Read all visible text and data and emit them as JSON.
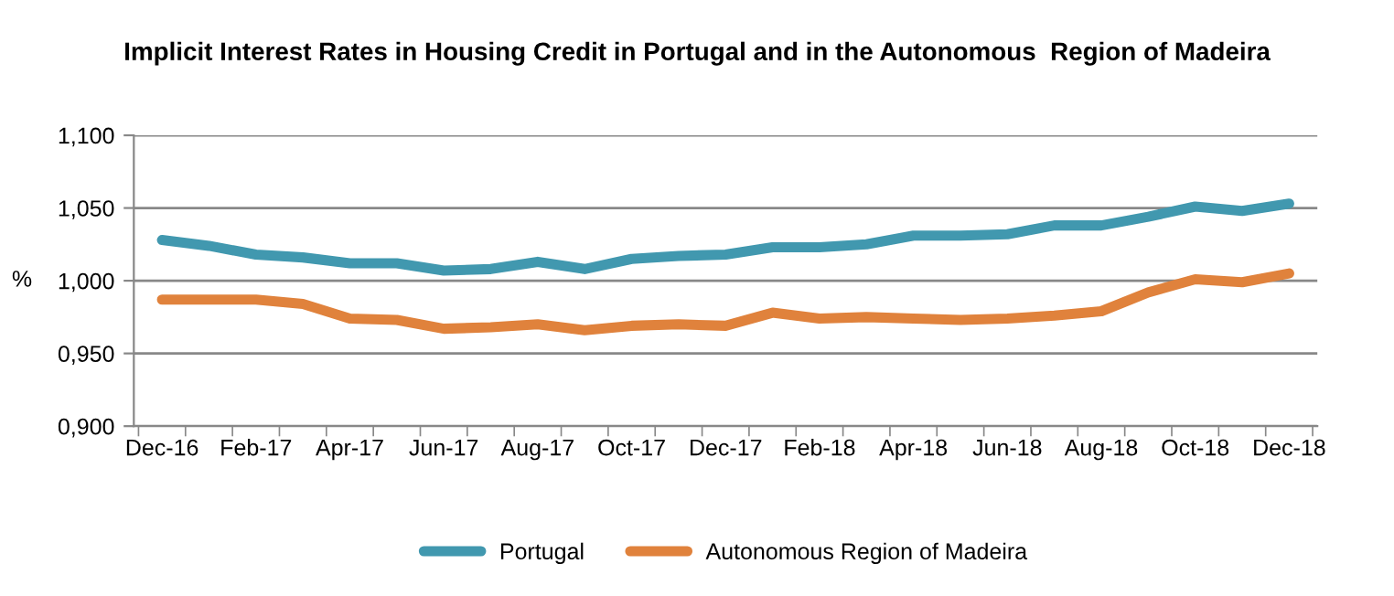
{
  "chart_data": {
    "type": "line",
    "title": "Implicit Interest Rates in Housing Credit in Portugal and in the Autonomous  Region of Madeira",
    "ylabel": "%",
    "categories": [
      "Dec-16",
      null,
      "Feb-17",
      null,
      "Apr-17",
      null,
      "Jun-17",
      null,
      "Aug-17",
      null,
      "Oct-17",
      null,
      "Dec-17",
      null,
      "Feb-18",
      null,
      "Apr-18",
      null,
      "Jun-18",
      null,
      "Aug-18",
      null,
      "Oct-18",
      null,
      "Dec-18"
    ],
    "series": [
      {
        "name": "Portugal",
        "color": "#4198af",
        "values": [
          1.028,
          1.024,
          1.018,
          1.016,
          1.012,
          1.012,
          1.007,
          1.008,
          1.013,
          1.008,
          1.015,
          1.017,
          1.018,
          1.023,
          1.023,
          1.025,
          1.031,
          1.031,
          1.032,
          1.038,
          1.038,
          1.044,
          1.051,
          1.048,
          1.053
        ]
      },
      {
        "name": "Autonomous Region of Madeira",
        "color": "#e0823c",
        "values": [
          0.987,
          0.987,
          0.987,
          0.984,
          0.974,
          0.973,
          0.967,
          0.968,
          0.97,
          0.966,
          0.969,
          0.97,
          0.969,
          0.978,
          0.974,
          0.975,
          0.974,
          0.973,
          0.974,
          0.976,
          0.979,
          0.992,
          1.001,
          0.999,
          1.005
        ]
      }
    ],
    "ylim": [
      0.9,
      1.1
    ],
    "yticks": [
      {
        "value": 0.9,
        "label": "0,900"
      },
      {
        "value": 0.95,
        "label": "0,950"
      },
      {
        "value": 1.0,
        "label": "1,000"
      },
      {
        "value": 1.05,
        "label": "1,050"
      },
      {
        "value": 1.1,
        "label": "1,100"
      }
    ],
    "grid": "y",
    "legend": "bottom",
    "marker": "none",
    "line_style": "solid"
  }
}
